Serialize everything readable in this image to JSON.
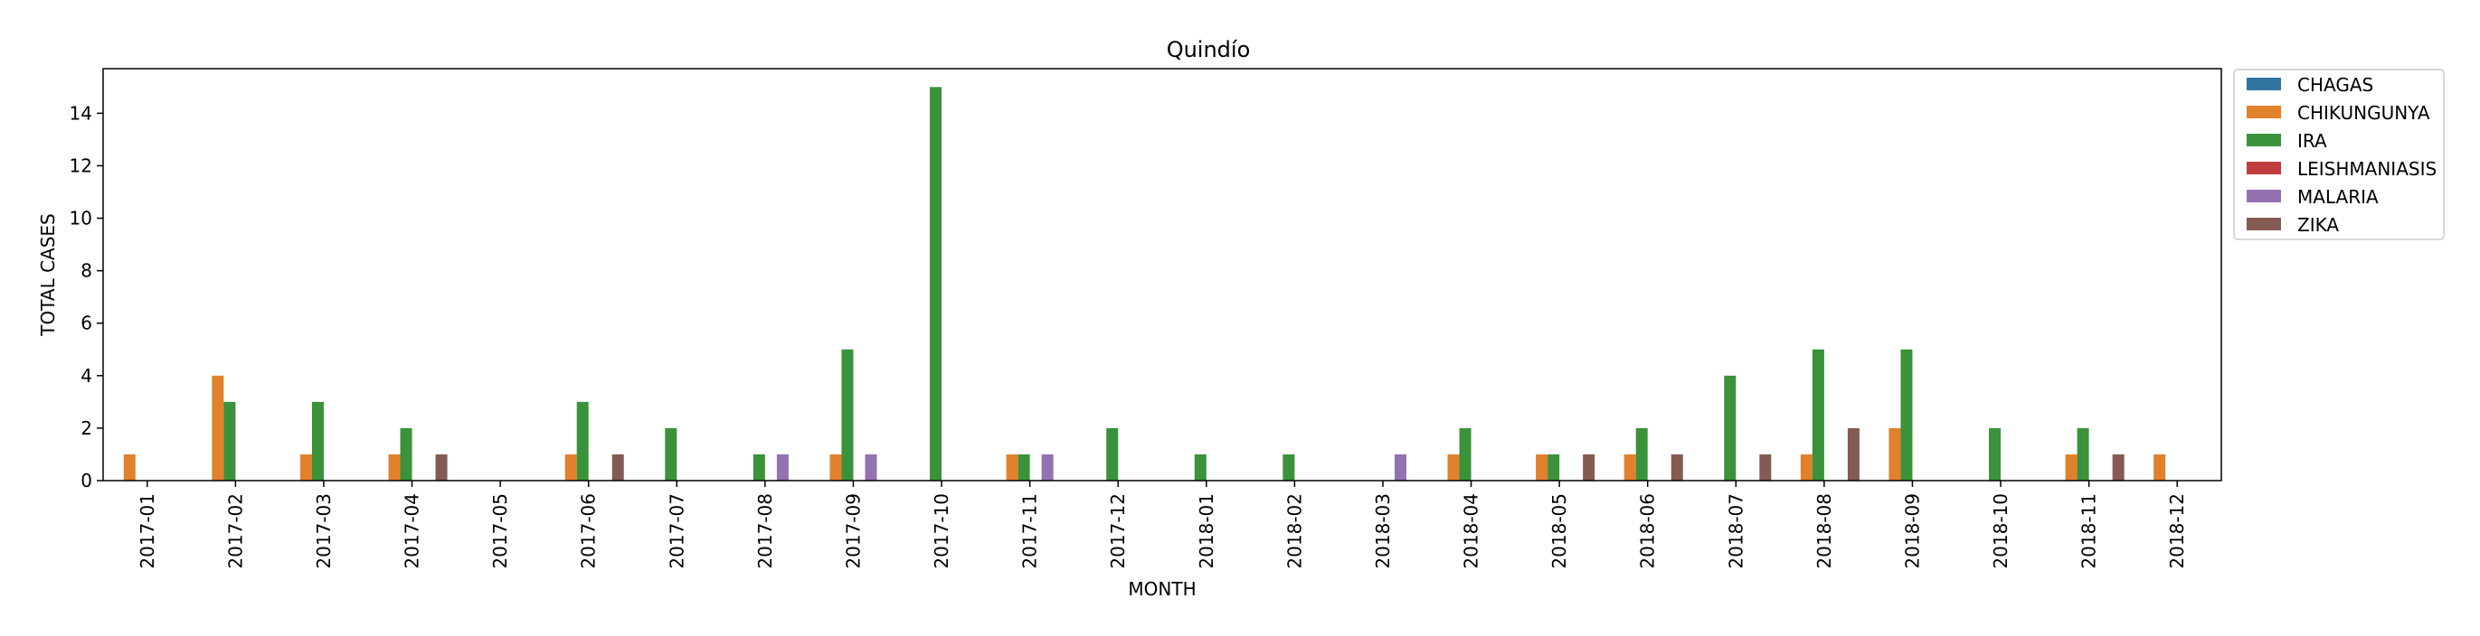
{
  "chart_data": {
    "type": "bar",
    "title": "Quindío",
    "xlabel": "MONTH",
    "ylabel": "TOTAL CASES",
    "ylim": [
      0,
      15.7
    ],
    "yticks": [
      "0",
      "2",
      "4",
      "6",
      "8",
      "10",
      "12",
      "14"
    ],
    "grid": false,
    "legend_position": "outside-top-right",
    "categories": [
      "2017-01",
      "2017-02",
      "2017-03",
      "2017-04",
      "2017-05",
      "2017-06",
      "2017-07",
      "2017-08",
      "2017-09",
      "2017-10",
      "2017-11",
      "2017-12",
      "2018-01",
      "2018-02",
      "2018-03",
      "2018-04",
      "2018-05",
      "2018-06",
      "2018-07",
      "2018-08",
      "2018-09",
      "2018-10",
      "2018-11",
      "2018-12"
    ],
    "series": [
      {
        "name": "CHAGAS",
        "color": "#3274a1",
        "values": [
          0,
          0,
          0,
          0,
          0,
          0,
          0,
          0,
          0,
          0,
          0,
          0,
          0,
          0,
          0,
          0,
          0,
          0,
          0,
          0,
          0,
          0,
          0,
          0
        ]
      },
      {
        "name": "CHIKUNGUNYA",
        "color": "#e1812c",
        "values": [
          1,
          4,
          1,
          1,
          0,
          1,
          0,
          0,
          1,
          0,
          1,
          0,
          0,
          0,
          0,
          1,
          1,
          1,
          0,
          1,
          2,
          0,
          1,
          1
        ]
      },
      {
        "name": "IRA",
        "color": "#3a923a",
        "values": [
          0,
          3,
          3,
          2,
          0,
          3,
          2,
          1,
          5,
          15,
          1,
          2,
          1,
          1,
          0,
          2,
          1,
          2,
          4,
          5,
          5,
          2,
          2,
          0
        ]
      },
      {
        "name": "LEISHMANIASIS",
        "color": "#c03d3e",
        "values": [
          0,
          0,
          0,
          0,
          0,
          0,
          0,
          0,
          0,
          0,
          0,
          0,
          0,
          0,
          0,
          0,
          0,
          0,
          0,
          0,
          0,
          0,
          0,
          0
        ]
      },
      {
        "name": "MALARIA",
        "color": "#9372b2",
        "values": [
          0,
          0,
          0,
          0,
          0,
          0,
          0,
          1,
          1,
          0,
          1,
          0,
          0,
          0,
          1,
          0,
          0,
          0,
          0,
          0,
          0,
          0,
          0,
          0
        ]
      },
      {
        "name": "ZIKA",
        "color": "#845b53",
        "values": [
          0,
          0,
          0,
          1,
          0,
          1,
          0,
          0,
          0,
          0,
          0,
          0,
          0,
          0,
          0,
          0,
          1,
          1,
          1,
          2,
          0,
          0,
          1,
          0
        ]
      }
    ]
  }
}
